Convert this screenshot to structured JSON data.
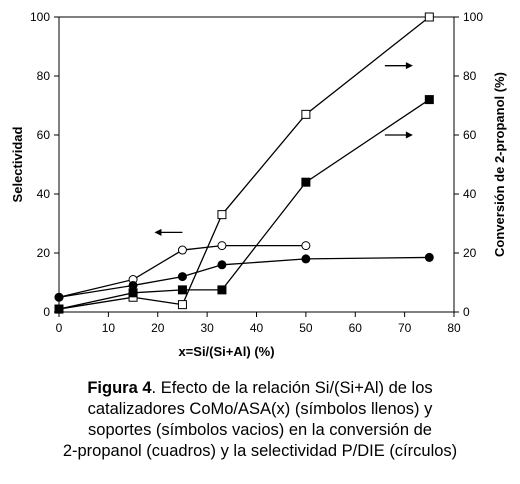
{
  "chart_data": {
    "type": "line",
    "xlabel": "x=Si/(Si+Al) (%)",
    "ylabel_left": "Selectividad",
    "ylabel_right": "Conversión de 2-propanol (%)",
    "xlim": [
      0,
      80
    ],
    "ylim_left": [
      0,
      100
    ],
    "ylim_right": [
      0,
      100
    ],
    "xticks": [
      "0",
      "10",
      "20",
      "30",
      "40",
      "50",
      "60",
      "70",
      "80"
    ],
    "yticks_left": [
      "0",
      "20",
      "40",
      "60",
      "80",
      "100"
    ],
    "yticks_right": [
      "0",
      "20",
      "40",
      "60",
      "80",
      "100"
    ],
    "grid": false,
    "series": [
      {
        "marker": "open-square",
        "axis": "right",
        "x": [
          0,
          15,
          25,
          33,
          50,
          75
        ],
        "y": [
          1,
          5,
          2.5,
          33,
          67,
          100
        ]
      },
      {
        "marker": "filled-square",
        "axis": "right",
        "x": [
          0,
          15,
          25,
          33,
          50,
          75
        ],
        "y": [
          1,
          6.5,
          7.5,
          7.5,
          44,
          72
        ]
      },
      {
        "marker": "open-circle",
        "axis": "left",
        "x": [
          0,
          15,
          25,
          33,
          50
        ],
        "y": [
          5,
          11,
          21,
          22.5,
          22.5
        ]
      },
      {
        "marker": "filled-circle",
        "axis": "left",
        "x": [
          0,
          15,
          25,
          33,
          50,
          75
        ],
        "y": [
          5,
          9,
          12,
          16,
          18,
          18.5
        ]
      }
    ],
    "annotations": [
      {
        "type": "arrow",
        "direction": "left",
        "x": 25,
        "y": 27,
        "axis": "left"
      },
      {
        "type": "arrow",
        "direction": "right",
        "x": 66,
        "y": 83.5,
        "axis": "right"
      },
      {
        "type": "arrow",
        "direction": "right",
        "x": 66,
        "y": 60,
        "axis": "right"
      }
    ]
  },
  "caption": {
    "label": "Figura 4",
    "lines": [
      ". Efecto de la relación Si/(Si+Al) de los",
      "catalizadores CoMo/ASA(x) (símbolos llenos) y",
      "soportes (símbolos vacios) en la conversión de",
      "2-propanol (cuadros) y la selectividad P/DIE (círculos)"
    ]
  }
}
